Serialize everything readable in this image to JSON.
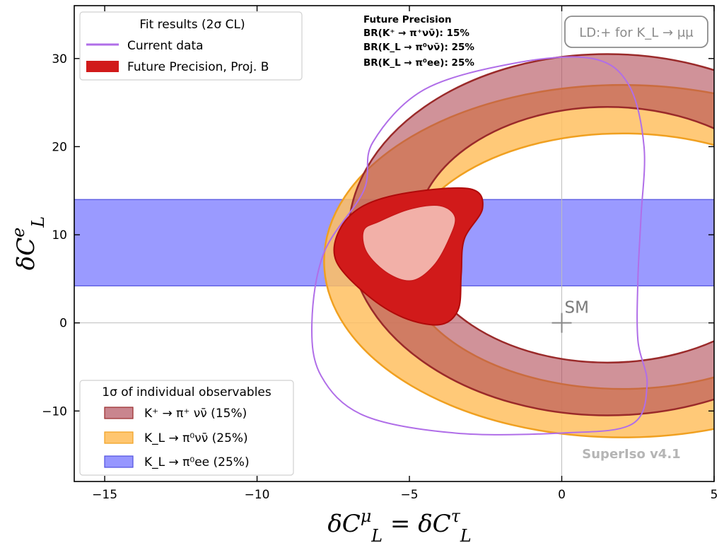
{
  "chart_data": {
    "type": "contour",
    "xlabel": "δC_L^μ = δC_L^τ",
    "ylabel": "δC_L^e",
    "xlim": [
      -16,
      5
    ],
    "ylim": [
      -18,
      36
    ],
    "x_ticks": [
      "−15",
      "−10",
      "−5",
      "0",
      "5"
    ],
    "x_tick_values": [
      -15,
      -10,
      -5,
      0,
      5
    ],
    "y_ticks": [
      "−10",
      "0",
      "10",
      "20",
      "30"
    ],
    "y_tick_values": [
      -10,
      0,
      10,
      20,
      30
    ],
    "sm_point": {
      "x": 0,
      "y": 0,
      "label": "SM"
    },
    "fit_legend": {
      "title": "Fit results (2σ CL)",
      "entries": [
        {
          "label": "Current data",
          "color": "#b06ee8",
          "style": "line"
        },
        {
          "label": "Future Precision, Proj. B",
          "color": "#d11a1a",
          "style": "patch"
        }
      ]
    },
    "observables_legend": {
      "title": "1σ of individual observables",
      "entries": [
        {
          "label": "K⁺ → π⁺ νν̄ (15%)",
          "color": "#c0707a",
          "edge": "#9a2a2a"
        },
        {
          "label": "K_L → π⁰νν̄ (25%)",
          "color": "#ffc060",
          "edge": "#f0a020"
        },
        {
          "label": "K_L → π⁰ee (25%)",
          "color": "#8c8cff",
          "edge": "#5050e0"
        }
      ]
    },
    "info_box": {
      "title": "Future Precision",
      "lines": [
        "BR(K⁺ → π⁺νν̄): 15%",
        "BR(K_L → π⁰νν̄): 25%",
        "BR(K_L → π⁰ee): 25%"
      ]
    },
    "ld_label": "LD:+ for K_L → μμ",
    "watermark": "SuperIso v4.1",
    "bands": {
      "kpi_plus": {
        "center": [
          1.5,
          10
        ],
        "outer": {
          "rx": 8.5,
          "ry": 20.5
        },
        "inner": {
          "rx": 6.3,
          "ry": 14.5
        }
      },
      "kl_nunu": {
        "center": [
          2,
          7
        ],
        "outer": {
          "rx": 9.8,
          "ry": 20
        },
        "inner": {
          "rx": 7.2,
          "ry": 14.5
        }
      },
      "kl_ee": {
        "ymin": 4.2,
        "ymax": 14.0
      }
    },
    "current_data_contour": [
      [
        -6.5,
        15
      ],
      [
        -7.8,
        8
      ],
      [
        -8.2,
        0
      ],
      [
        -7.9,
        -6
      ],
      [
        -6.5,
        -10.5
      ],
      [
        -3.5,
        -12.5
      ],
      [
        0,
        -12.5
      ],
      [
        2.3,
        -11.5
      ],
      [
        2.8,
        -7
      ],
      [
        2.5,
        -2
      ],
      [
        2.5,
        5
      ],
      [
        2.6,
        12
      ],
      [
        2.7,
        20
      ],
      [
        2.2,
        27
      ],
      [
        1.0,
        30
      ],
      [
        -1.5,
        29.5
      ],
      [
        -4.5,
        26.5
      ],
      [
        -6.2,
        20.5
      ]
    ],
    "future_outer_contour": [
      [
        -6.5,
        13.3
      ],
      [
        -5.0,
        14.8
      ],
      [
        -3.0,
        15.2
      ],
      [
        -2.6,
        13.0
      ],
      [
        -3.2,
        9.5
      ],
      [
        -3.3,
        5.5
      ],
      [
        -3.4,
        1.5
      ],
      [
        -4.0,
        -0.2
      ],
      [
        -5.2,
        0.6
      ],
      [
        -6.4,
        3.2
      ],
      [
        -7.4,
        7.0
      ],
      [
        -7.3,
        10.5
      ]
    ],
    "future_inner_contour": [
      [
        -6.0,
        11.5
      ],
      [
        -5.0,
        12.9
      ],
      [
        -4.0,
        13.3
      ],
      [
        -3.5,
        12.0
      ],
      [
        -3.7,
        9.5
      ],
      [
        -4.2,
        6.5
      ],
      [
        -4.9,
        4.8
      ],
      [
        -5.7,
        5.6
      ],
      [
        -6.4,
        8.0
      ],
      [
        -6.5,
        10.5
      ]
    ]
  }
}
